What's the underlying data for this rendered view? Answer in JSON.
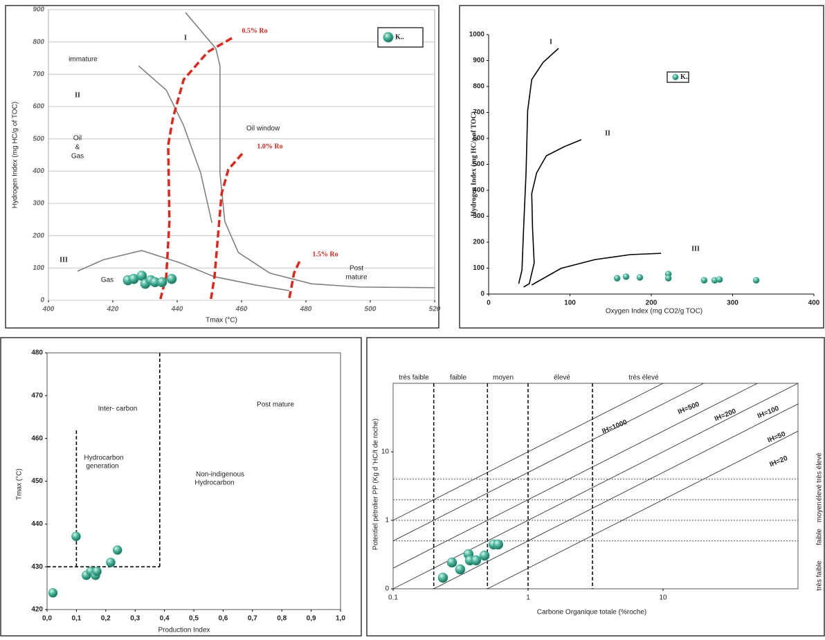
{
  "chart_data": [
    {
      "type": "scatter",
      "x_label": "Tmax (°C)",
      "y_label": "Hydrogen Index (mg HC/g of TOC)",
      "xlim": [
        400,
        520
      ],
      "xticks": [
        400,
        420,
        440,
        460,
        480,
        500,
        520
      ],
      "ylim": [
        0,
        900
      ],
      "yticks": [
        0,
        100,
        200,
        300,
        400,
        500,
        600,
        700,
        800,
        900
      ],
      "grid": true,
      "series": [
        {
          "name": "K..",
          "color": "#3aa88e",
          "x": [
            424.7,
            426.5,
            429,
            430.1,
            431.8,
            433.1,
            435.3,
            438.3
          ],
          "values": [
            62,
            66,
            76,
            51,
            62,
            56,
            56,
            66
          ]
        }
      ],
      "curves": [
        {
          "color": "#7f7f7f",
          "dashed": false,
          "x": [
            442.6,
            452,
            453.3,
            453.3,
            454.8,
            459,
            468.8,
            481.7,
            496.8,
            520
          ],
          "y": [
            891,
            780,
            726,
            394,
            244,
            148,
            84,
            51,
            41,
            39
          ]
        },
        {
          "color": "#7f7f7f",
          "dashed": false,
          "x": [
            428,
            436.6,
            441.9,
            447.3,
            450.8
          ],
          "y": [
            726,
            651,
            544,
            394,
            240
          ]
        },
        {
          "color": "#7f7f7f",
          "dashed": false,
          "x": [
            409,
            417.2,
            429,
            440.9,
            451.6,
            464.5,
            474.8
          ],
          "y": [
            90,
            126,
            154,
            116,
            73,
            47,
            30
          ]
        },
        {
          "color": "#e0261b",
          "dashed": true,
          "x": [
            457,
            449.5,
            442,
            438.7,
            437.2,
            437.6,
            436.6,
            434.8
          ],
          "y": [
            812,
            769,
            683,
            565,
            480,
            244,
            73,
            4
          ]
        },
        {
          "color": "#e0261b",
          "dashed": true,
          "x": [
            460.2,
            455.9,
            453.8,
            452.7,
            451.6,
            450.5
          ],
          "y": [
            454,
            405,
            330,
            201,
            73,
            4
          ]
        },
        {
          "color": "#e0261b",
          "dashed": true,
          "x": [
            478,
            476.3,
            475.3,
            474.8
          ],
          "y": [
            120,
            84,
            30,
            4
          ]
        }
      ],
      "annotations": [
        "I",
        "II",
        "III",
        "immature",
        "Oil",
        "&",
        "Gas",
        "Oil window",
        "Gas",
        "Post",
        "mature",
        "0.5% Ro",
        "1.0% Ro",
        "1.5% Ro"
      ]
    },
    {
      "type": "scatter",
      "x_label": "Oxygen Index (mg CO2/g TOC)",
      "y_label": "Hydrogen Index (mg HC/g of TOC)",
      "xlim": [
        0,
        400
      ],
      "xticks": [
        0,
        100,
        200,
        300,
        400
      ],
      "ylim": [
        0,
        1000
      ],
      "yticks": [
        0,
        100,
        200,
        300,
        400,
        500,
        600,
        700,
        800,
        900,
        1000
      ],
      "grid": false,
      "series": [
        {
          "name": "K..",
          "color": "#3aa88e",
          "x": [
            158,
            169,
            186,
            221,
            221,
            265,
            278,
            284,
            329
          ],
          "values": [
            61,
            67,
            64,
            77,
            61,
            53,
            53,
            56,
            53
          ]
        }
      ],
      "curves": [
        {
          "color": "#000000",
          "dashed": false,
          "x": [
            86,
            67,
            53,
            48,
            46,
            43,
            41,
            37
          ],
          "y": [
            947,
            893,
            827,
            707,
            467,
            253,
            93,
            40
          ]
        },
        {
          "color": "#000000",
          "dashed": false,
          "x": [
            114,
            93,
            71,
            59,
            53,
            54,
            56,
            50,
            43
          ],
          "y": [
            595,
            568,
            533,
            467,
            387,
            253,
            120,
            40,
            27
          ]
        },
        {
          "color": "#000000",
          "dashed": false,
          "x": [
            53,
            89,
            131,
            174,
            212
          ],
          "y": [
            35,
            99,
            133,
            152,
            157
          ]
        }
      ],
      "annotations": [
        "I",
        "II",
        "III"
      ]
    },
    {
      "type": "scatter",
      "x_label": "Production Index",
      "y_label": "Tmax (°C)",
      "xlim": [
        0,
        1
      ],
      "xticks": [
        {
          "value": 0,
          "label": "0,0"
        },
        {
          "value": 0.1,
          "label": "0,1"
        },
        {
          "value": 0.2,
          "label": "0,2"
        },
        {
          "value": 0.3,
          "label": "0,3"
        },
        {
          "value": 0.4,
          "label": "0,4"
        },
        {
          "value": 0.5,
          "label": "0,5"
        },
        {
          "value": 0.6,
          "label": "0,6"
        },
        {
          "value": 0.7,
          "label": "0,7"
        },
        {
          "value": 0.8,
          "label": "0,8"
        },
        {
          "value": 0.9,
          "label": "0,9"
        },
        {
          "value": 1,
          "label": "1,0"
        }
      ],
      "ylim": [
        420,
        480
      ],
      "yticks": [
        420,
        430,
        440,
        450,
        460,
        470,
        480
      ],
      "grid": false,
      "series": [
        {
          "color": "#3aa88e",
          "x": [
            0.099,
            0.02,
            0.134,
            0.149,
            0.165,
            0.17,
            0.217,
            0.24
          ],
          "values": [
            437.1,
            423.9,
            428,
            428.9,
            428,
            428.9,
            431,
            433.9
          ]
        }
      ],
      "curves": [
        {
          "color": "#000000",
          "dashed": true,
          "x": [
            0,
            0.384
          ],
          "y": [
            430,
            430
          ]
        },
        {
          "color": "#000000",
          "dashed": true,
          "x": [
            0.1,
            0.1
          ],
          "y": [
            430,
            462
          ]
        },
        {
          "color": "#000000",
          "dashed": true,
          "x": [
            0.384,
            0.384
          ],
          "y": [
            430,
            480
          ]
        }
      ],
      "annotations": [
        "Inter- carbon",
        "Post mature",
        "Hydrocarbon",
        "generation",
        "Non-indigenous",
        "Hydrocarbon"
      ]
    },
    {
      "type": "scatter",
      "x_label": "Carbone Organique totale (%roche)",
      "y_label": "Potentiel pétrolier PP (Kg d 'HC/t de roche)",
      "xlog": true,
      "ylog": true,
      "xlim": [
        0.1,
        100
      ],
      "xticks": [
        0.1,
        1,
        10
      ],
      "ylim": [
        0.1,
        100
      ],
      "yticks": [
        {
          "value": 0.1,
          "label": "0"
        },
        1,
        10
      ],
      "grid": false,
      "series": [
        {
          "color": "#3aa88e",
          "x": [
            0.234,
            0.273,
            0.314,
            0.362,
            0.371,
            0.412,
            0.476,
            0.555,
            0.6
          ],
          "values": [
            0.145,
            0.242,
            0.192,
            0.32,
            0.26,
            0.26,
            0.305,
            0.443,
            0.443
          ]
        }
      ],
      "ih_lines": [
        {
          "value": 1000,
          "label": "IH=1000"
        },
        {
          "value": 500,
          "label": "IH=500"
        },
        {
          "value": 200,
          "label": "IH=200"
        },
        {
          "value": 100,
          "label": "IH=100"
        },
        {
          "value": 50,
          "label": "IH=50"
        },
        {
          "value": 20,
          "label": "IH=20"
        }
      ],
      "x_boundaries": [
        0.2,
        0.5,
        1,
        3
      ],
      "y_boundaries": [
        0.5,
        1,
        2,
        4
      ],
      "x_classes": [
        "très faible",
        "faible",
        "moyen",
        "élevé",
        "très élevé"
      ],
      "y_classes": [
        "très faible",
        "faible",
        "moyen",
        "élevé",
        "très élevé"
      ]
    }
  ]
}
